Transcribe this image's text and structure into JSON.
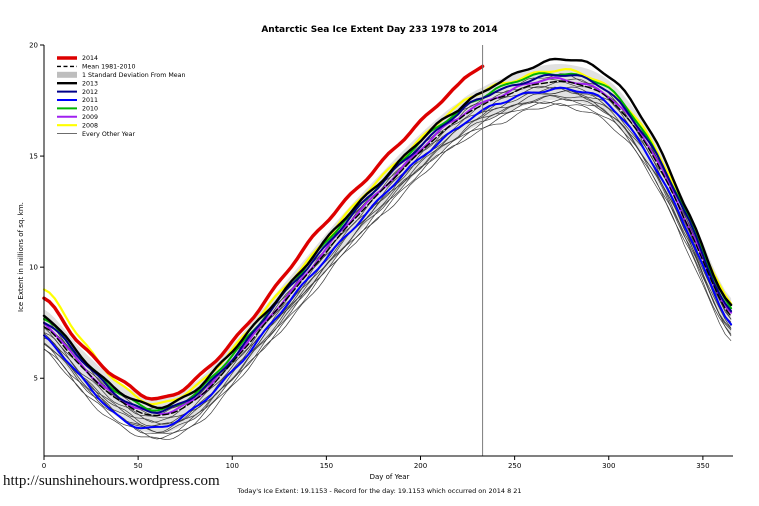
{
  "page": {
    "url_text": "http://sunshinehours.wordpress.com"
  },
  "chart_data": {
    "type": "line",
    "title": "Antarctic Sea Ice Extent Day 233 1978 to 2014",
    "xlabel": "Day of Year",
    "ylabel": "Ice Extent in millions of sq. km.",
    "footer_note": "Today's Ice Extent: 19.1153  - Record for the day: 19.1153 which occurred on 2014 8 21",
    "today_value": 19.1153,
    "record_value": 19.1153,
    "record_date": "2014 8 21",
    "xlim": [
      0,
      366
    ],
    "ylim": [
      1.5,
      20
    ],
    "x_ticks": [
      0,
      50,
      100,
      150,
      200,
      250,
      300,
      350
    ],
    "y_ticks": [
      5,
      10,
      15,
      20
    ],
    "vline_day": 233,
    "grid": false,
    "legend_position": "top-left",
    "std_band": 0.8,
    "x": [
      0,
      20,
      40,
      60,
      80,
      100,
      120,
      140,
      160,
      180,
      200,
      220,
      233,
      240,
      260,
      280,
      300,
      320,
      340,
      365
    ],
    "series": [
      {
        "name": "2008",
        "color": "#FFFF00",
        "width": 2.2,
        "y": [
          9.0,
          6.7,
          4.8,
          3.8,
          4.6,
          6.3,
          8.3,
          10.3,
          12.3,
          14.1,
          15.8,
          17.2,
          17.9,
          18.2,
          18.7,
          18.8,
          18.1,
          16.0,
          12.7,
          8.4
        ]
      },
      {
        "name": "2009",
        "color": "#A020F0",
        "width": 2,
        "y": [
          7.4,
          5.6,
          4.1,
          3.4,
          4.1,
          5.8,
          7.8,
          9.8,
          11.8,
          13.6,
          15.3,
          16.7,
          17.4,
          17.7,
          18.3,
          18.4,
          17.7,
          15.6,
          12.3,
          7.9
        ]
      },
      {
        "name": "2010",
        "color": "#00B400",
        "width": 2,
        "y": [
          7.7,
          5.9,
          4.3,
          3.6,
          4.3,
          6.0,
          8.1,
          10.1,
          12.1,
          13.9,
          15.6,
          17.0,
          17.7,
          18.0,
          18.6,
          18.7,
          18.0,
          15.9,
          12.6,
          8.1
        ]
      },
      {
        "name": "2011",
        "color": "#0000FF",
        "width": 2,
        "y": [
          6.9,
          5.0,
          3.2,
          2.8,
          3.6,
          5.3,
          7.4,
          9.4,
          11.4,
          13.2,
          14.9,
          16.3,
          17.0,
          17.3,
          17.9,
          18.0,
          17.3,
          15.2,
          11.9,
          7.5
        ]
      },
      {
        "name": "2012",
        "color": "#00008B",
        "width": 2,
        "y": [
          7.6,
          5.8,
          4.2,
          3.5,
          4.2,
          5.9,
          8.0,
          10.0,
          12.0,
          13.8,
          15.5,
          16.9,
          17.6,
          17.9,
          18.5,
          18.6,
          17.9,
          15.8,
          12.5,
          8.0
        ]
      },
      {
        "name": "Mean 1981-2010",
        "color": "#000000",
        "width": 1.4,
        "dash": "6 3",
        "y": [
          7.3,
          5.5,
          4.0,
          3.3,
          4.0,
          5.7,
          7.7,
          9.7,
          11.7,
          13.5,
          15.2,
          16.6,
          17.3,
          17.6,
          18.2,
          18.3,
          17.6,
          15.5,
          12.2,
          7.8
        ]
      },
      {
        "name": "2013",
        "color": "#000000",
        "width": 2.4,
        "y": [
          7.8,
          6.0,
          4.4,
          3.7,
          4.5,
          6.2,
          8.2,
          10.2,
          12.2,
          14.0,
          15.7,
          17.1,
          17.9,
          18.3,
          19.0,
          19.4,
          18.6,
          16.4,
          12.9,
          8.2
        ]
      },
      {
        "name": "2014",
        "color": "#DD0000",
        "width": 3.4,
        "y": [
          8.6,
          6.5,
          4.9,
          4.1,
          4.9,
          6.6,
          8.8,
          11.0,
          13.0,
          14.8,
          16.5,
          18.2,
          19.1
        ]
      }
    ],
    "other_years": {
      "label": "Every Other Year",
      "color": "#3c3c3c",
      "width": 0.7,
      "offsets": [
        -1.1,
        -0.95,
        -0.8,
        -0.65,
        -0.5,
        -0.35,
        -0.2,
        -0.05,
        0.1,
        0.25,
        -0.7,
        -0.4
      ]
    },
    "legend": [
      {
        "label": "2014",
        "color": "#DD0000",
        "swatch": "line",
        "width": 3.4
      },
      {
        "label": "Mean 1981-2010",
        "color": "#000000",
        "swatch": "dashed",
        "width": 1.4
      },
      {
        "label": "1 Standard Deviation From Mean",
        "color": "#BEBEBE",
        "swatch": "patch",
        "width": 0
      },
      {
        "label": "2013",
        "color": "#000000",
        "swatch": "line",
        "width": 2.4
      },
      {
        "label": "2012",
        "color": "#00008B",
        "swatch": "line",
        "width": 2
      },
      {
        "label": "2011",
        "color": "#0000FF",
        "swatch": "line",
        "width": 2
      },
      {
        "label": "2010",
        "color": "#00B400",
        "swatch": "line",
        "width": 2
      },
      {
        "label": "2009",
        "color": "#A020F0",
        "swatch": "line",
        "width": 2
      },
      {
        "label": "2008",
        "color": "#FFFF00",
        "swatch": "line",
        "width": 2.2
      },
      {
        "label": "Every Other Year",
        "color": "#3c3c3c",
        "swatch": "line",
        "width": 0.7
      }
    ]
  }
}
